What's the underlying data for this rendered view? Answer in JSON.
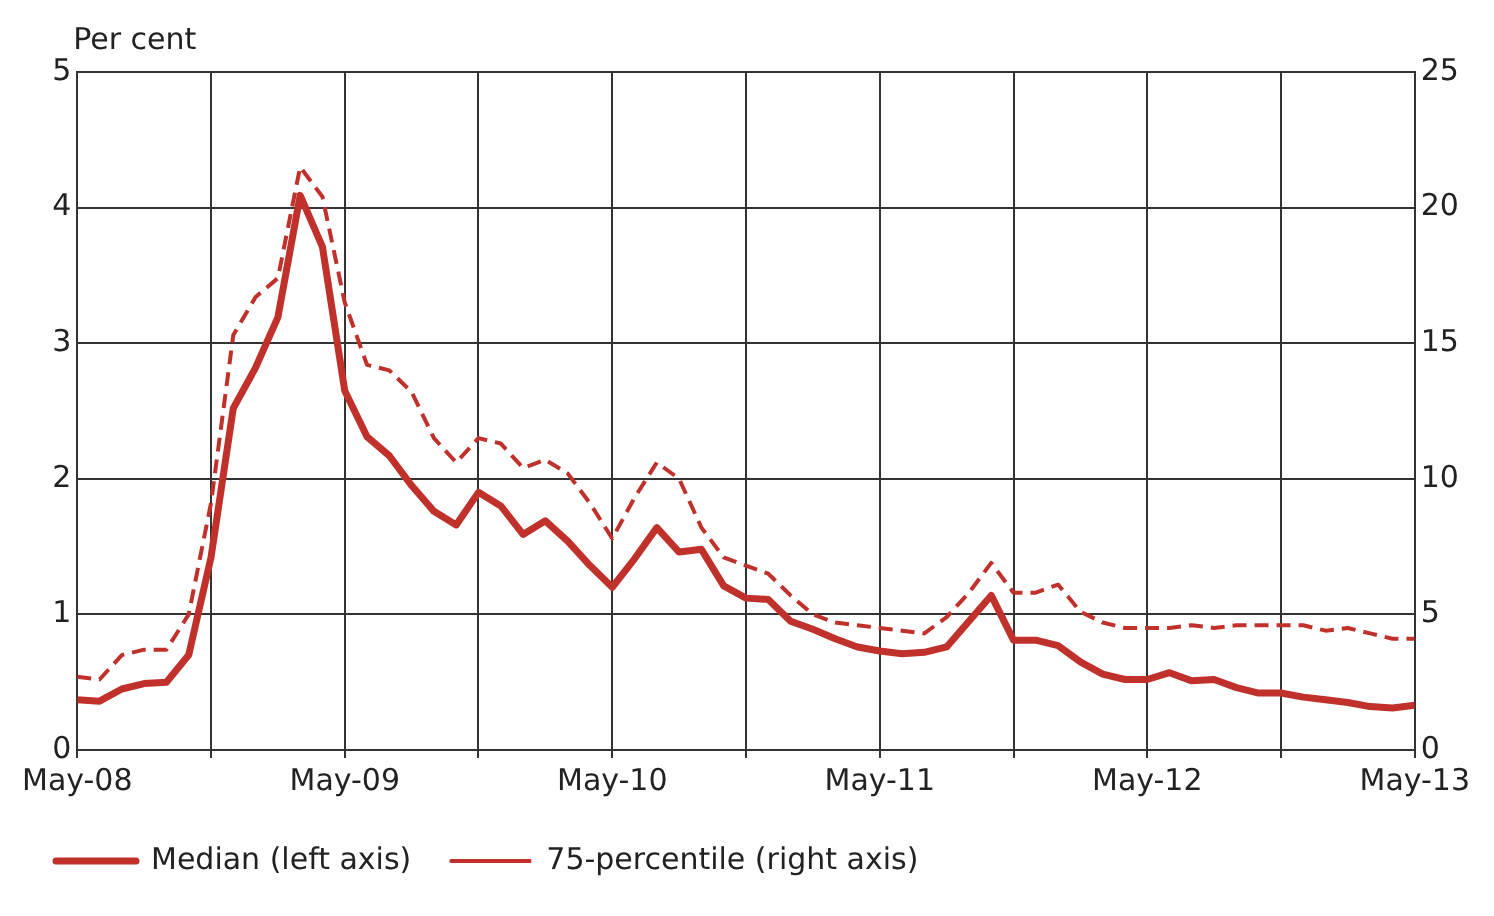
{
  "chart_data": {
    "type": "line",
    "ylabel": "Per cent",
    "x": [
      "2008-05",
      "2008-06",
      "2008-07",
      "2008-08",
      "2008-09",
      "2008-10",
      "2008-11",
      "2008-12",
      "2009-01",
      "2009-02",
      "2009-03",
      "2009-04",
      "2009-05",
      "2009-06",
      "2009-07",
      "2009-08",
      "2009-09",
      "2009-10",
      "2009-11",
      "2009-12",
      "2010-01",
      "2010-02",
      "2010-03",
      "2010-04",
      "2010-05",
      "2010-06",
      "2010-07",
      "2010-08",
      "2010-09",
      "2010-10",
      "2010-11",
      "2010-12",
      "2011-01",
      "2011-02",
      "2011-03",
      "2011-04",
      "2011-05",
      "2011-06",
      "2011-07",
      "2011-08",
      "2011-09",
      "2011-10",
      "2011-11",
      "2011-12",
      "2012-01",
      "2012-02",
      "2012-03",
      "2012-04",
      "2012-05",
      "2012-06",
      "2012-07",
      "2012-08",
      "2012-09",
      "2012-10",
      "2012-11",
      "2012-12",
      "2013-01",
      "2013-02",
      "2013-03",
      "2013-04",
      "2013-05"
    ],
    "series": [
      {
        "name": "Median (left axis)",
        "color": "#c0312b",
        "line_style": "solid",
        "values": [
          0.37,
          0.36,
          0.45,
          0.49,
          0.5,
          0.7,
          1.42,
          2.52,
          2.82,
          3.19,
          4.09,
          3.71,
          2.65,
          2.31,
          2.17,
          1.95,
          1.76,
          1.66,
          1.9,
          1.8,
          1.59,
          1.69,
          1.54,
          1.36,
          1.2,
          1.41,
          1.64,
          1.46,
          1.48,
          1.21,
          1.12,
          1.11,
          0.95,
          0.89,
          0.82,
          0.76,
          0.73,
          0.71,
          0.72,
          0.76,
          0.95,
          1.14,
          0.81,
          0.81,
          0.77,
          0.65,
          0.56,
          0.52,
          0.52,
          0.57,
          0.51,
          0.52,
          0.46,
          0.42,
          0.42,
          0.39,
          0.37,
          0.35,
          0.32,
          0.31,
          0.33
        ]
      },
      {
        "name": "75-percentile (right axis)",
        "color": "#c0312b",
        "line_style": "dashed",
        "axis": "y2",
        "values": [
          2.7,
          2.6,
          3.5,
          3.7,
          3.7,
          5.0,
          9.1,
          15.3,
          16.7,
          17.4,
          21.5,
          20.4,
          16.5,
          14.2,
          14.0,
          13.2,
          11.5,
          10.6,
          11.5,
          11.3,
          10.4,
          10.7,
          10.2,
          9.1,
          7.8,
          9.3,
          10.6,
          10.0,
          8.2,
          7.1,
          6.8,
          6.5,
          5.7,
          5.0,
          4.7,
          4.6,
          4.5,
          4.4,
          4.3,
          4.9,
          5.8,
          6.9,
          5.8,
          5.8,
          6.1,
          5.1,
          4.7,
          4.5,
          4.5,
          4.5,
          4.6,
          4.5,
          4.6,
          4.6,
          4.6,
          4.6,
          4.4,
          4.5,
          4.3,
          4.1,
          4.1
        ]
      }
    ],
    "xlim": [
      "2008-05",
      "2013-05"
    ],
    "xticks": [
      {
        "value": "2008-05",
        "label": "May-08"
      },
      {
        "value": "2008-11",
        "label": null
      },
      {
        "value": "2009-05",
        "label": "May-09"
      },
      {
        "value": "2009-11",
        "label": null
      },
      {
        "value": "2010-05",
        "label": "May-10"
      },
      {
        "value": "2010-11",
        "label": null
      },
      {
        "value": "2011-05",
        "label": "May-11"
      },
      {
        "value": "2011-11",
        "label": null
      },
      {
        "value": "2012-05",
        "label": "May-12"
      },
      {
        "value": "2012-11",
        "label": null
      },
      {
        "value": "2013-05",
        "label": "May-13"
      }
    ],
    "ylim": [
      0,
      5
    ],
    "yticks": [
      0,
      1,
      2,
      3,
      4,
      5
    ],
    "y2lim": [
      0,
      25
    ],
    "y2ticks": [
      0,
      5,
      10,
      15,
      20,
      25
    ],
    "grid": true,
    "legend": "bottom",
    "marker": "none"
  }
}
